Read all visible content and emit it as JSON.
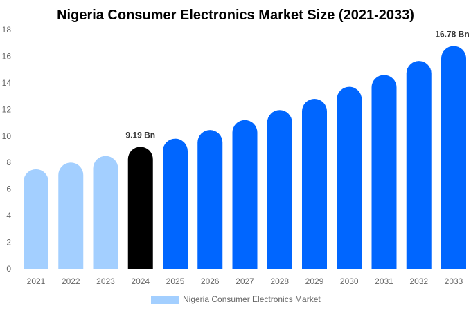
{
  "chart_data": {
    "type": "bar",
    "title": "Nigeria Consumer Electronics Market Size (2021-2033)",
    "categories": [
      "2021",
      "2022",
      "2023",
      "2024",
      "2025",
      "2026",
      "2027",
      "2028",
      "2029",
      "2030",
      "2031",
      "2032",
      "2033"
    ],
    "series": [
      {
        "name": "Nigeria Consumer Electronics Market",
        "values": [
          7.5,
          8.0,
          8.5,
          9.19,
          9.8,
          10.45,
          11.2,
          11.95,
          12.8,
          13.7,
          14.6,
          15.65,
          16.78
        ]
      }
    ],
    "data_labels": {
      "3": "9.19 Bn",
      "12": "16.78 Bn"
    },
    "yticks": [
      "0",
      "2",
      "4",
      "6",
      "8",
      "10",
      "12",
      "14",
      "16",
      "18"
    ],
    "ylim": [
      0,
      18
    ],
    "grid": false,
    "legend": "bottom",
    "colors": {
      "historical": "#a3cfff",
      "base_year": "#000000",
      "forecast": "#0066ff",
      "legend": "#a3cfff"
    }
  }
}
